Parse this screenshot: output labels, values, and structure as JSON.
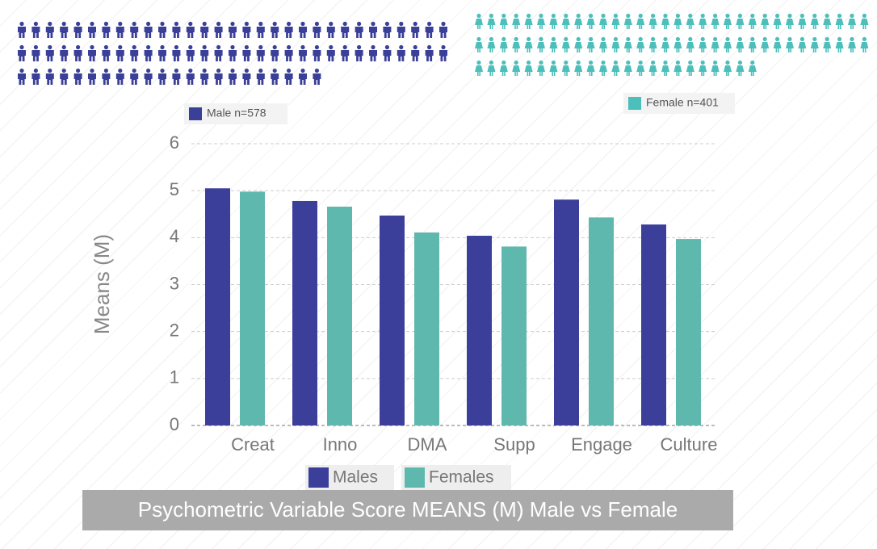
{
  "chart_data": {
    "type": "bar",
    "title": "Psychometric Variable Score MEANS (M) Male vs Female",
    "y_label": "Means (M)",
    "group_labels": [
      "Male n=578",
      "Female n=401"
    ],
    "categories": [
      "Creat",
      "Inno",
      "DMA",
      "Supp",
      "Engage",
      "Culture"
    ],
    "series": [
      {
        "name": "Males",
        "color": "#3b3f9a",
        "values": [
          5.05,
          4.78,
          4.47,
          4.04,
          4.81,
          4.28
        ]
      },
      {
        "name": "Females",
        "color": "#5fb8ad",
        "values": [
          4.98,
          4.66,
          4.11,
          3.81,
          4.43,
          3.97
        ]
      }
    ],
    "ylim": [
      0,
      6
    ],
    "yticks": [
      0,
      1,
      2,
      3,
      4,
      5,
      6
    ],
    "grid": true
  }
}
